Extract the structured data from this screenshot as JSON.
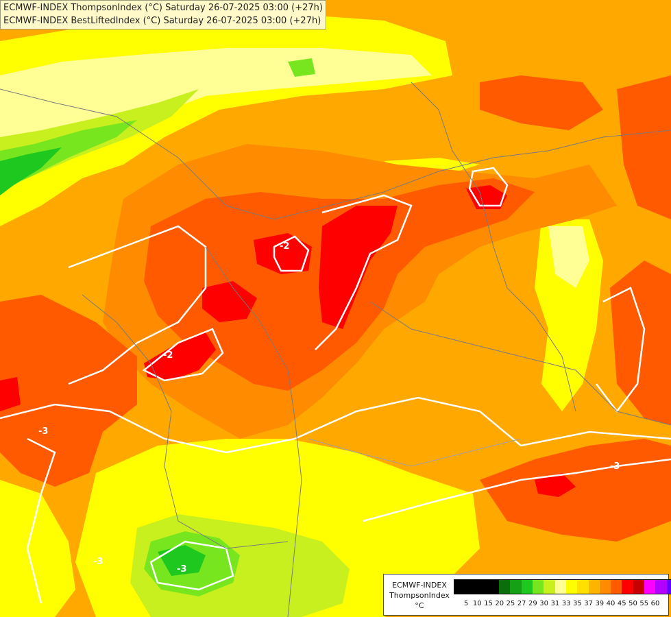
{
  "titles": {
    "line1": "ECMWF-INDEX ThompsonIndex (°C) Saturday 26-07-2025 03:00 (+27h)",
    "line2": "ECMWF-INDEX BestLiftedIndex (°C) Saturday 26-07-2025 03:00 (+27h)"
  },
  "legend": {
    "title_line1": "ECMWF-INDEX",
    "title_line2": "ThompsonIndex",
    "unit": "°C",
    "colors": [
      "#000000",
      "#000000",
      "#000000",
      "#000000",
      "#0a6e0a",
      "#16a016",
      "#1ec81e",
      "#78e61e",
      "#c8f01e",
      "#ffff96",
      "#ffff00",
      "#ffe000",
      "#ffb400",
      "#ff8c00",
      "#ff5a00",
      "#ff0000",
      "#c80000",
      "#ff00ff",
      "#b400ff",
      "#6400ff",
      "#0000ff"
    ],
    "ticks": [
      "5",
      "10",
      "15",
      "20",
      "25",
      "27",
      "29",
      "30",
      "31",
      "33",
      "35",
      "37",
      "39",
      "40",
      "45",
      "50",
      "55",
      "60"
    ]
  },
  "contour_labels": [
    "-2",
    "-2",
    "-3",
    "-3",
    "-3",
    "-3"
  ]
}
